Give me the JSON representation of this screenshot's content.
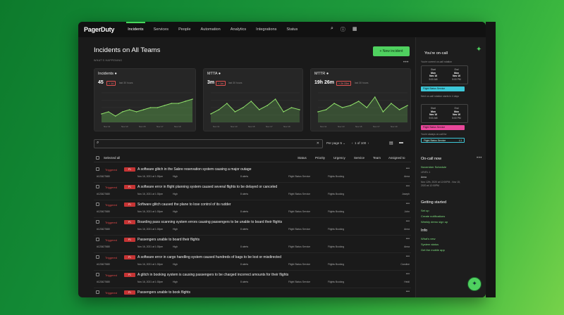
{
  "nav": {
    "logo": "PagerDuty",
    "items": [
      "Incidents",
      "Services",
      "People",
      "Automation",
      "Analytics",
      "Integrations",
      "Status"
    ]
  },
  "page": {
    "title": "Incidents on All Teams",
    "subtitle": "WHAT'S HAPPENING",
    "new_button": "+ New incident"
  },
  "cards": [
    {
      "title": "Incidents",
      "value": "45",
      "badge": "+ 14",
      "hint": "last 30 hours",
      "ticks": [
        "Nov 11",
        "Nov 13",
        "Nov 15",
        "Nov 17",
        "Nov 19"
      ]
    },
    {
      "title": "MTTA",
      "value": "3m",
      "badge": "+ 1m",
      "hint": "last 30 hours",
      "ticks": [
        "Nov 11",
        "Nov 13",
        "Nov 15",
        "Nov 17",
        "Nov 19"
      ]
    },
    {
      "title": "MTTR",
      "value": "19h 26m",
      "badge": "+ 2h 33m",
      "hint": "last 30 hours",
      "ticks": [
        "Nov 11",
        "Nov 13",
        "Nov 15",
        "Nov 17",
        "Nov 19"
      ]
    }
  ],
  "chart_data": [
    {
      "type": "area",
      "series": [
        {
          "values": [
            4,
            5,
            3,
            5,
            6,
            5,
            6,
            7,
            7,
            8,
            9,
            9,
            10,
            11
          ]
        }
      ]
    },
    {
      "type": "line",
      "series": [
        {
          "values": [
            4,
            6,
            9,
            5,
            7,
            10,
            6,
            8,
            11,
            5,
            7,
            6
          ]
        }
      ]
    },
    {
      "type": "line",
      "series": [
        {
          "values": [
            5,
            6,
            9,
            7,
            8,
            10,
            7,
            12,
            5,
            9,
            6,
            8
          ]
        }
      ]
    }
  ],
  "toolbar": {
    "per_page": "Per page 5",
    "pager": "1 of 100"
  },
  "table": {
    "select_all": "Selected all",
    "headers": [
      "Status",
      "Priority",
      "Urgency",
      "Service",
      "Team",
      "Assigned to"
    ],
    "rows": [
      {
        "status": "Triggered",
        "priority": "P1",
        "title": "A software glitch in the Sabre reservation system causing a major outage",
        "id": "#123427680",
        "date": "Nov 16, 2021 at 1:30pm",
        "urgency": "High",
        "alerts": "8 alerts",
        "service": "Flight Status Service",
        "team": "Flights Booking",
        "assignee": "Anna"
      },
      {
        "status": "Triggered",
        "priority": "P1",
        "title": "A software error in flight planning system caused several flights to be delayed or canceled",
        "id": "#123427680",
        "date": "Nov 16, 2021 at 1:30pm",
        "urgency": "High",
        "alerts": "8 alerts",
        "service": "Flight Status Service",
        "team": "Flights Booking",
        "assignee": "Joseph"
      },
      {
        "status": "Triggered",
        "priority": "P1",
        "title": "Software glitch caused the plane to lose control of its rudder",
        "id": "#123427680",
        "date": "Nov 16, 2021 at 1:30pm",
        "urgency": "High",
        "alerts": "8 alerts",
        "service": "Flight Status Service",
        "team": "Flights Booking",
        "assignee": "John"
      },
      {
        "status": "Triggered",
        "priority": "P1",
        "title": "Boarding pass scanning system errors causing passengers to be unable to board their flights",
        "id": "#123427680",
        "date": "Nov 16, 2021 at 1:30pm",
        "urgency": "High",
        "alerts": "8 alerts",
        "service": "Flight Status Service",
        "team": "Flights Booking",
        "assignee": "Anna"
      },
      {
        "status": "Triggered",
        "priority": "P1",
        "title": "Passengers unable to board their flights",
        "id": "#123427680",
        "date": "Nov 16, 2021 at 1:30pm",
        "urgency": "High",
        "alerts": "8 alerts",
        "service": "Flight Status Service",
        "team": "Flights Booking",
        "assignee": "Anna"
      },
      {
        "status": "Triggered",
        "priority": "P1",
        "title": "A software error in cargo handling system caused hundreds of bags to be lost or misdirected",
        "id": "#123427680",
        "date": "Nov 16, 2021 at 1:30pm",
        "urgency": "High",
        "alerts": "8 alerts",
        "service": "Flight Status Service",
        "team": "Flights Booking",
        "assignee": "Caroline"
      },
      {
        "status": "Triggered",
        "priority": "P1",
        "title": "A glitch in booking system is causing passengers to be charged incorrect amounts for their flights",
        "id": "#123427680",
        "date": "Nov 16, 2021 at 1:30pm",
        "urgency": "High",
        "alerts": "8 alerts",
        "service": "Flight Status Service",
        "team": "Flights Booking",
        "assignee": "Heidi"
      },
      {
        "status": "Triggered",
        "priority": "P1",
        "title": "Passengers unable to book flights",
        "id": "#123427680",
        "date": "Nov 16, 2021 at 1:30pm",
        "urgency": "High",
        "alerts": "8 alerts",
        "service": "Flight Status Service",
        "team": "Flights Booking",
        "assignee": "Anna"
      }
    ]
  },
  "sidebar": {
    "oncall_title": "You're on-call",
    "oncall_text": "You're current on-call rotation",
    "sched1": {
      "start_label": "Start",
      "start_day": "Mon",
      "start_date": "Nov 16",
      "start_time": "9:00 AM",
      "end_label": "End",
      "end_day": "Mon",
      "end_date": "Nov 16",
      "end_time": "5:00 PM"
    },
    "pill1": "Flight Status Service",
    "next_text": "Next on-call rotation starts in 4 days",
    "sched2": {
      "start_label": "Start",
      "start_day": "Mon",
      "start_date": "Nov 16",
      "start_time": "9:00 AM",
      "end_label": "End",
      "end_day": "Mon",
      "end_date": "Nov 16",
      "end_time": "5:00 PM"
    },
    "pill2": "Flight Status Service",
    "always_text": "You're always on-call for",
    "pill3": "Flight Status Service",
    "pill3_count": "L1",
    "oncall_now": "On-call now",
    "schedule_name": "November Schedule",
    "level": "LEVEL 1",
    "person": "Anna",
    "range": "Nov 12th, 2020 at 12:00PM - Nov 15, 2020 at 12:00PM",
    "getting_started": "Getting started",
    "gs_links": [
      "Set up",
      "Create notifications",
      "Weekly demo sign up"
    ],
    "info": "Info",
    "info_links": [
      "What's new",
      "System status",
      "Get the mobile app"
    ]
  },
  "colors": {
    "accent": "#4fd15f",
    "danger": "#c63434",
    "surface": "#1a1a1a"
  }
}
